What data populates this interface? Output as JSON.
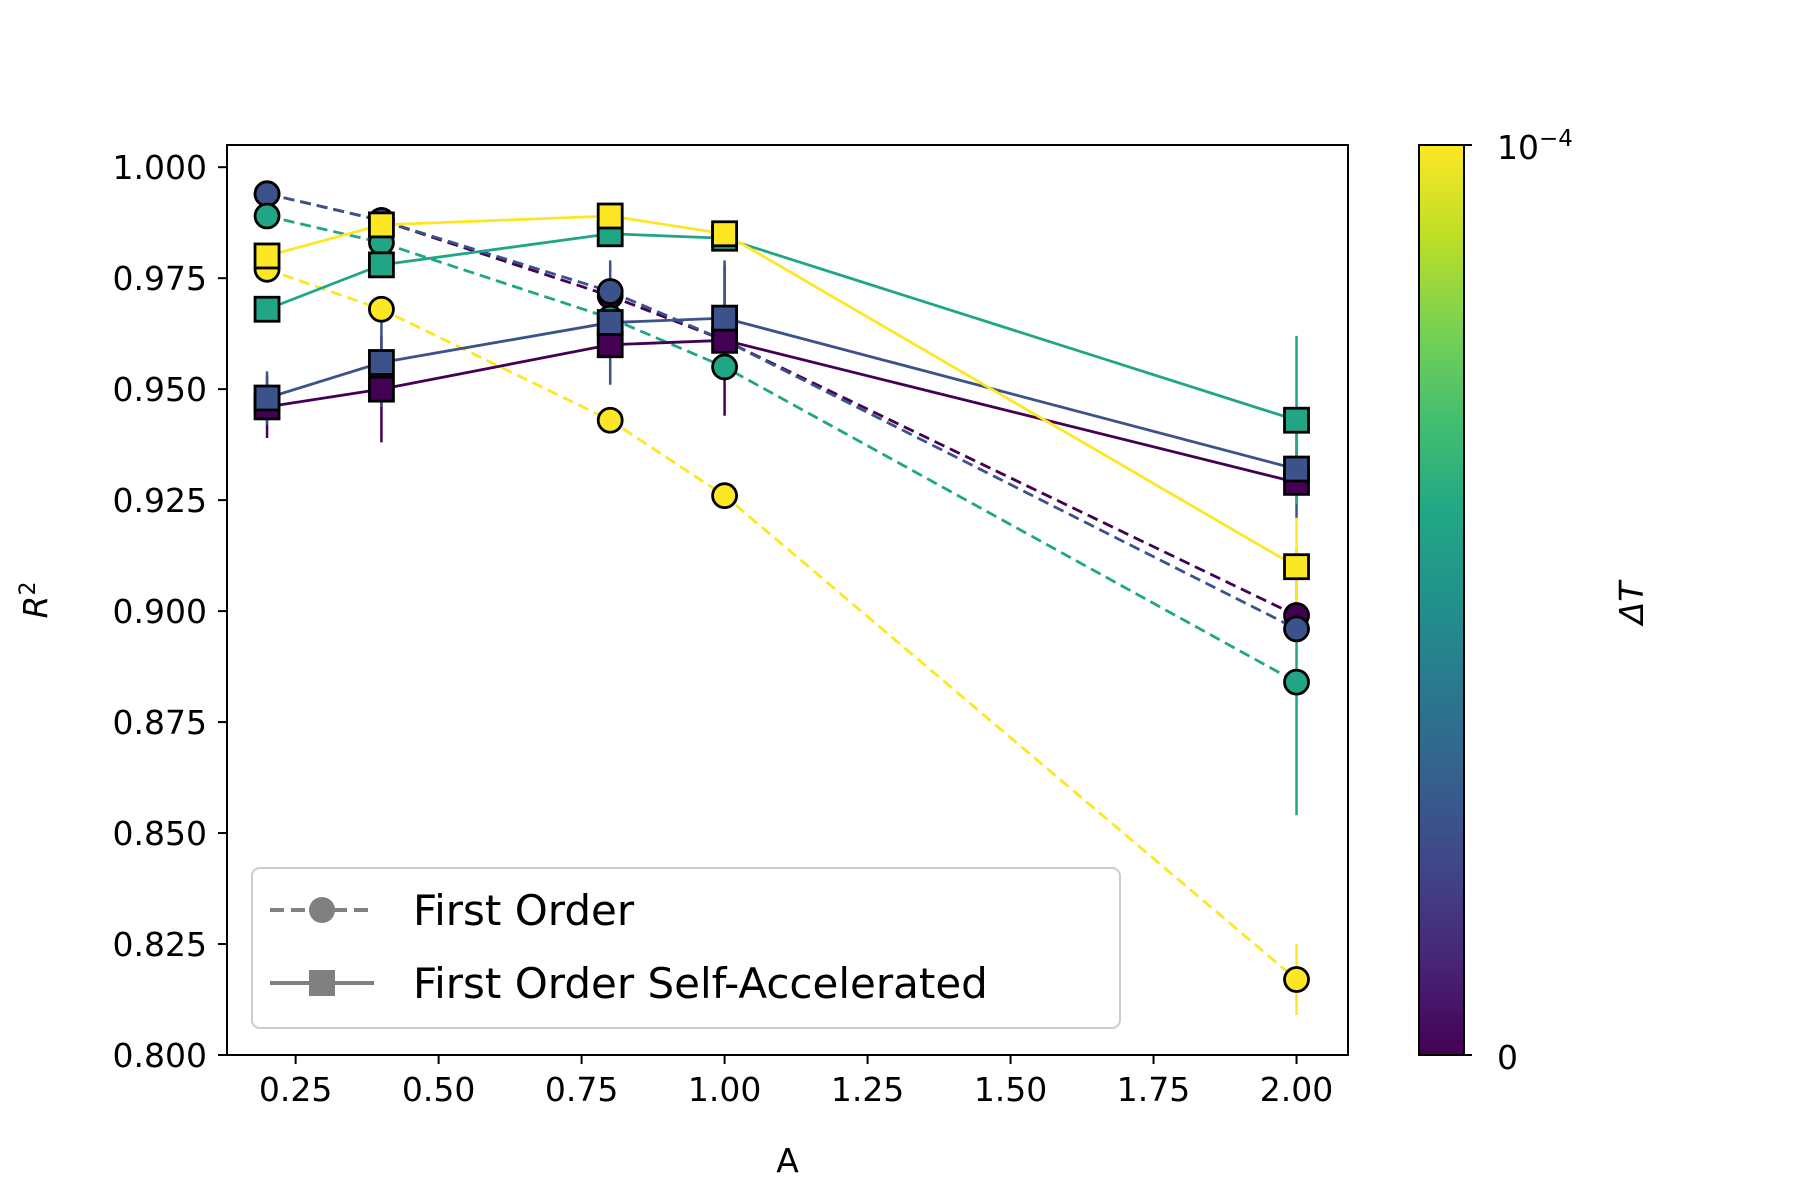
{
  "chart_data": {
    "type": "line",
    "xlabel": "A",
    "ylabel": "R",
    "ylabel_sup": "2",
    "xlim": [
      0.13,
      2.09
    ],
    "ylim": [
      0.8,
      1.005
    ],
    "xticks": [
      0.25,
      0.5,
      0.75,
      1.0,
      1.25,
      1.5,
      1.75,
      2.0
    ],
    "xtick_labels": [
      "0.25",
      "0.50",
      "0.75",
      "1.00",
      "1.25",
      "1.50",
      "1.75",
      "2.00"
    ],
    "yticks": [
      0.8,
      0.825,
      0.85,
      0.875,
      0.9,
      0.925,
      0.95,
      0.975,
      1.0
    ],
    "ytick_labels": [
      "0.800",
      "0.825",
      "0.850",
      "0.875",
      "0.900",
      "0.925",
      "0.950",
      "0.975",
      "1.000"
    ],
    "x": [
      0.2,
      0.4,
      0.8,
      1.0,
      2.0
    ],
    "legend": {
      "location": "lower-left",
      "entries": [
        {
          "label": "First Order",
          "linestyle": "dashed",
          "marker": "circle"
        },
        {
          "label": "First Order Self-Accelerated",
          "linestyle": "solid",
          "marker": "square"
        }
      ]
    },
    "colorbar": {
      "label": "ΔT",
      "colormap": "viridis",
      "min_label": "0",
      "max_label_base": "10",
      "max_label_exp": "−4"
    },
    "series": [
      {
        "method": "First Order",
        "color": "#440154",
        "marker": "circle",
        "linestyle": "dashed",
        "values": [
          0.994,
          0.988,
          0.971,
          0.961,
          0.899
        ],
        "errors": [
          0,
          0,
          0,
          0,
          0
        ]
      },
      {
        "method": "First Order",
        "color": "#3b528b",
        "marker": "circle",
        "linestyle": "dashed",
        "values": [
          0.994,
          0.988,
          0.972,
          0.961,
          0.896
        ],
        "errors": [
          0,
          0,
          0,
          0,
          0
        ]
      },
      {
        "method": "First Order",
        "color": "#21a685",
        "marker": "circle",
        "linestyle": "dashed",
        "values": [
          0.989,
          0.983,
          0.966,
          0.955,
          0.884
        ],
        "errors": [
          0,
          0,
          0,
          0,
          0.03
        ]
      },
      {
        "method": "First Order",
        "color": "#fde725",
        "marker": "circle",
        "linestyle": "dashed",
        "values": [
          0.977,
          0.968,
          0.943,
          0.926,
          0.817
        ],
        "errors": [
          0,
          0,
          0,
          0,
          0.008
        ]
      },
      {
        "method": "First Order Self-Accelerated",
        "color": "#440154",
        "marker": "square",
        "linestyle": "solid",
        "values": [
          0.946,
          0.95,
          0.96,
          0.961,
          0.929
        ],
        "errors": [
          0.007,
          0.012,
          0,
          0.017,
          0
        ]
      },
      {
        "method": "First Order Self-Accelerated",
        "color": "#3b528b",
        "marker": "square",
        "linestyle": "solid",
        "values": [
          0.948,
          0.956,
          0.965,
          0.966,
          0.932
        ],
        "errors": [
          0.006,
          0.01,
          0.014,
          0.013,
          0.011
        ]
      },
      {
        "method": "First Order Self-Accelerated",
        "color": "#21a685",
        "marker": "square",
        "linestyle": "solid",
        "values": [
          0.968,
          0.978,
          0.985,
          0.984,
          0.943
        ],
        "errors": [
          0,
          0,
          0,
          0,
          0.019
        ]
      },
      {
        "method": "First Order Self-Accelerated",
        "color": "#fde725",
        "marker": "square",
        "linestyle": "solid",
        "values": [
          0.98,
          0.987,
          0.989,
          0.985,
          0.91
        ],
        "errors": [
          0,
          0,
          0,
          0,
          0.011
        ]
      }
    ]
  }
}
